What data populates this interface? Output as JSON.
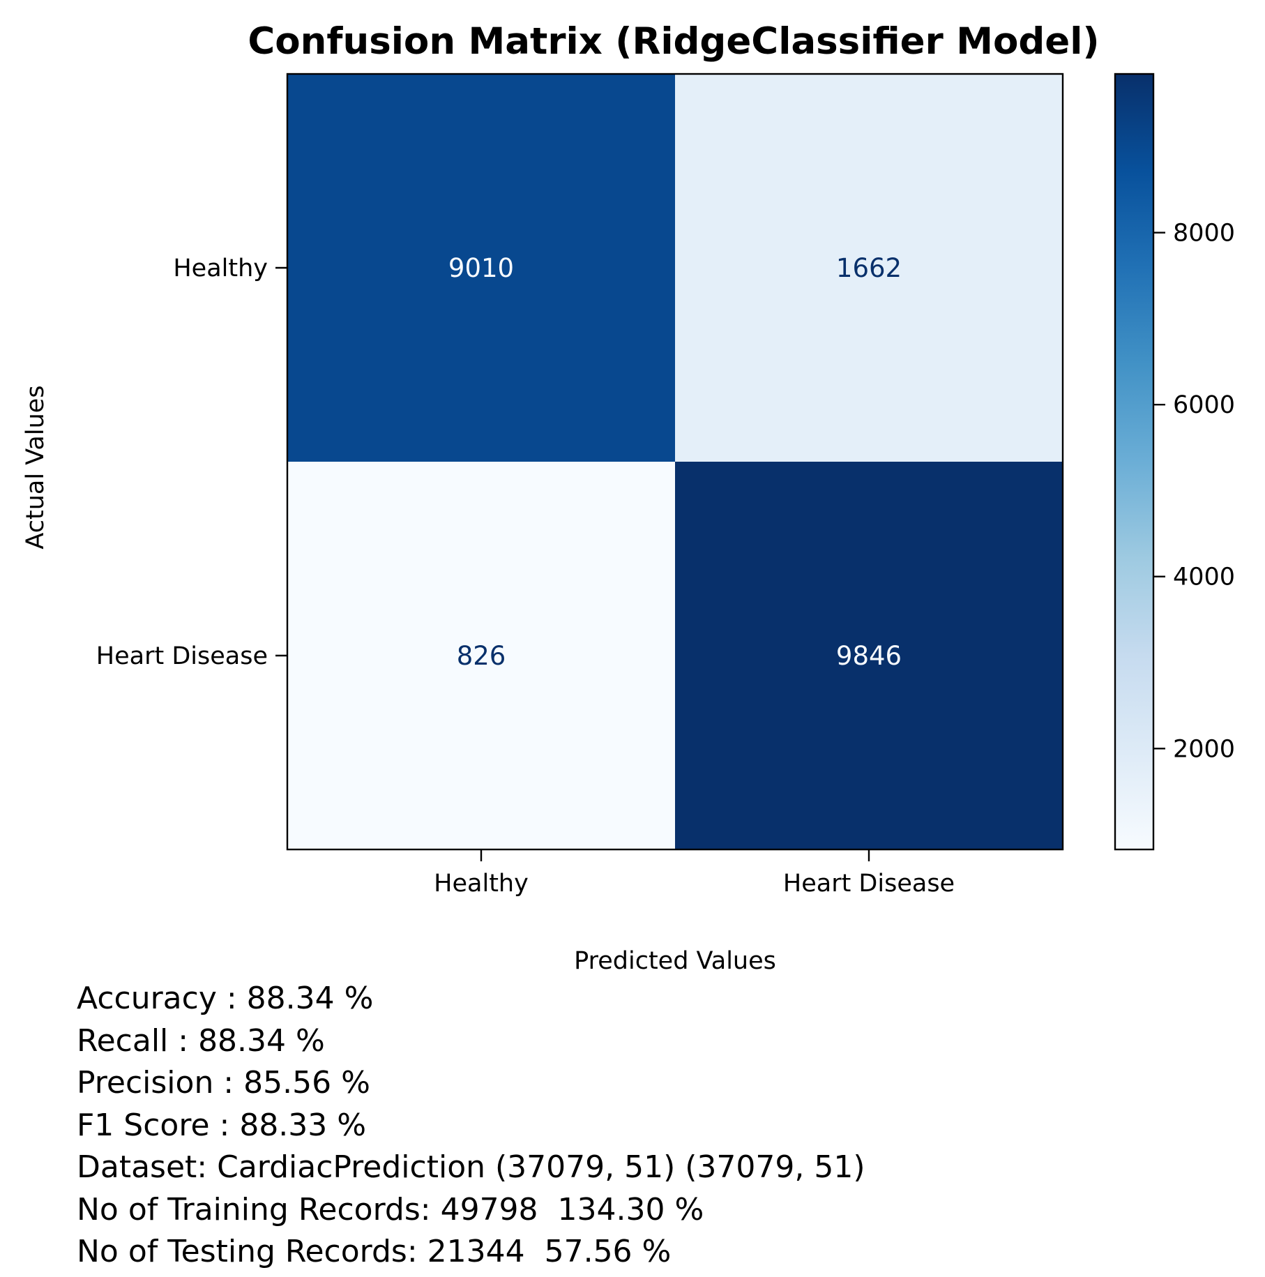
{
  "chart_data": {
    "type": "heatmap",
    "title": "Confusion Matrix (RidgeClassifier Model)",
    "xlabel": "Predicted Values",
    "ylabel": "Actual Values",
    "x_categories": [
      "Healthy",
      "Heart Disease"
    ],
    "y_categories": [
      "Healthy",
      "Heart Disease"
    ],
    "matrix": [
      [
        9010,
        1662
      ],
      [
        826,
        9846
      ]
    ],
    "colormap": "Blues",
    "colorbar": {
      "ticks": [
        2000,
        4000,
        6000,
        8000
      ],
      "range": [
        826,
        9846
      ]
    },
    "grid": false
  },
  "metrics": [
    "Accuracy : 88.34 %",
    "Recall : 88.34 %",
    "Precision : 85.56 %",
    "F1 Score : 88.33 %",
    "Dataset: CardiacPrediction (37079, 51) (37079, 51)",
    "No of Training Records: 49798  134.30 %",
    "No of Testing Records: 21344  57.56 %"
  ]
}
